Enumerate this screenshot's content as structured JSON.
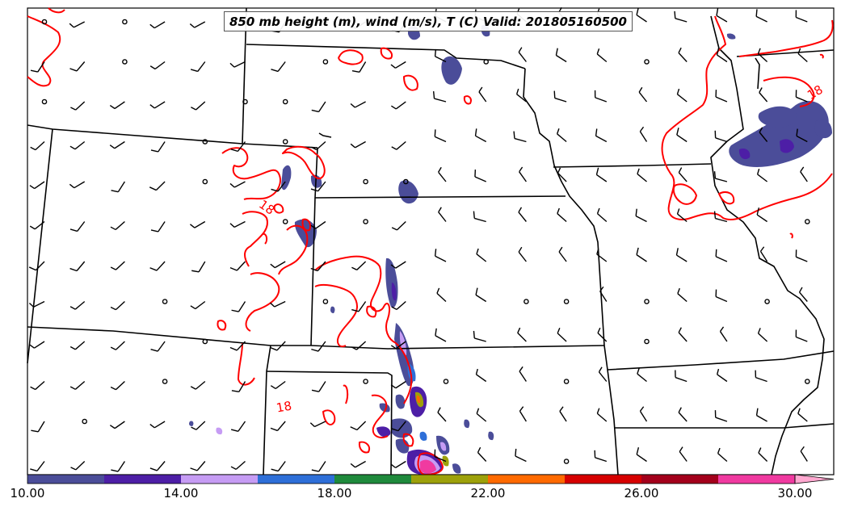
{
  "title": "850 mb height (m), wind (m/s), T (C) Valid: 201805160500",
  "isotherm_label": "18",
  "colors": {
    "border": "#000000",
    "isotherm": "#ff0000",
    "wind": "#000000"
  },
  "colorbar": {
    "tick_labels": [
      "10.00",
      "14.00",
      "18.00",
      "22.00",
      "26.00",
      "30.00"
    ],
    "tick_values": [
      10,
      14,
      18,
      22,
      26,
      30
    ],
    "min": 10,
    "max": 30,
    "bins": [
      {
        "from": 10,
        "to": 12,
        "color": "#4b4d99"
      },
      {
        "from": 12,
        "to": 14,
        "color": "#4d1ea6"
      },
      {
        "from": 14,
        "to": 16,
        "color": "#c69cf4"
      },
      {
        "from": 16,
        "to": 18,
        "color": "#2e6fd8"
      },
      {
        "from": 18,
        "to": 20,
        "color": "#1f8a3c"
      },
      {
        "from": 20,
        "to": 22,
        "color": "#9da10a"
      },
      {
        "from": 22,
        "to": 24,
        "color": "#ff6a00"
      },
      {
        "from": 24,
        "to": 26,
        "color": "#d60000"
      },
      {
        "from": 26,
        "to": 28,
        "color": "#a3001b"
      },
      {
        "from": 28,
        "to": 30,
        "color": "#f03aa0"
      }
    ],
    "extend_color": "#ffa8d0"
  }
}
